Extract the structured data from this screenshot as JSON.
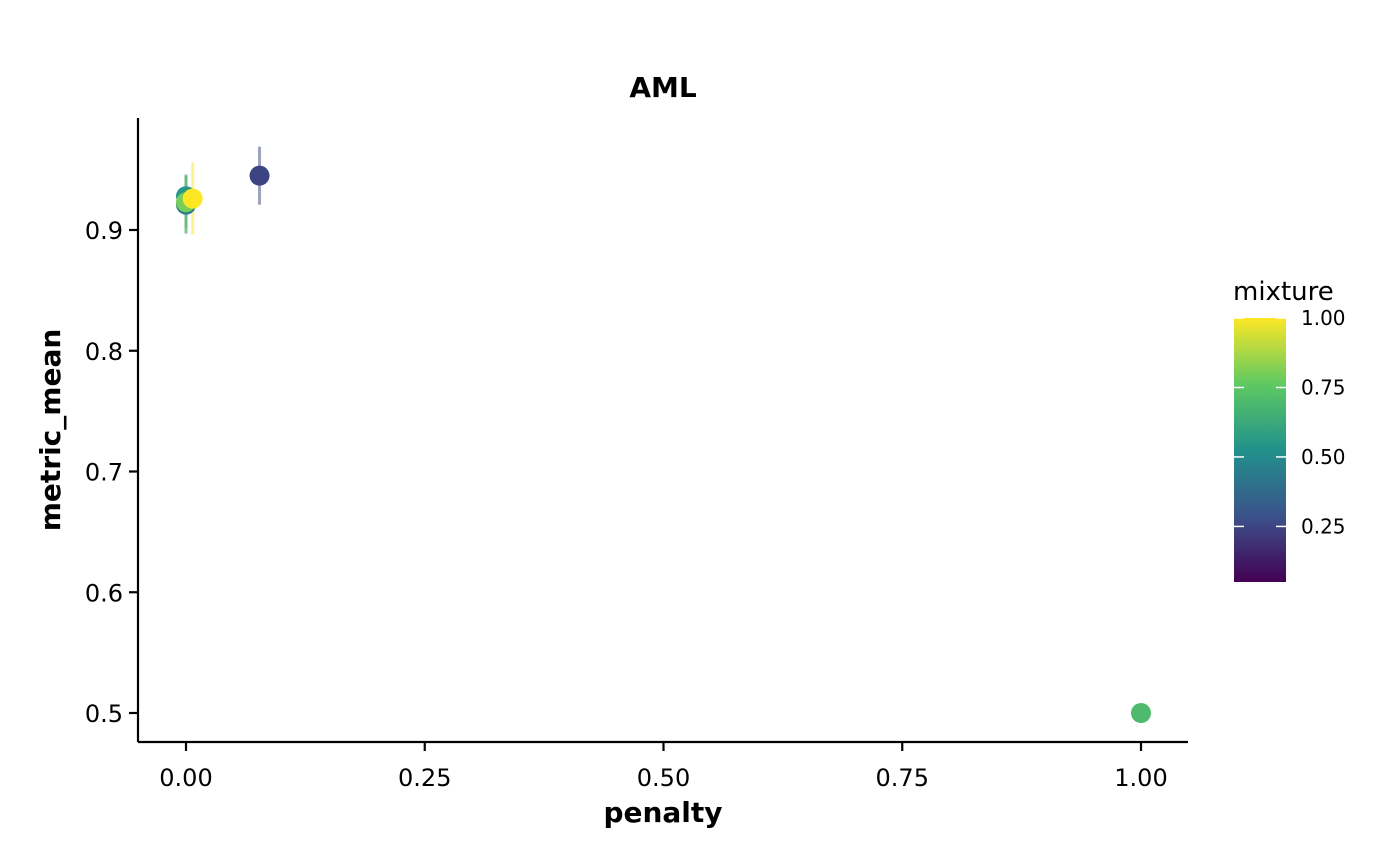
{
  "chart_data": {
    "type": "scatter",
    "title": "AML",
    "xlabel": "penalty",
    "ylabel": "metric_mean",
    "xlim": [
      -0.05,
      1.05
    ],
    "ylim": [
      0.477,
      0.992
    ],
    "x_ticks": [
      {
        "value": 0.0,
        "label": "0.00"
      },
      {
        "value": 0.25,
        "label": "0.25"
      },
      {
        "value": 0.5,
        "label": "0.50"
      },
      {
        "value": 0.75,
        "label": "0.75"
      },
      {
        "value": 1.0,
        "label": "1.00"
      }
    ],
    "y_ticks": [
      {
        "value": 0.5,
        "label": "0.5"
      },
      {
        "value": 0.6,
        "label": "0.6"
      },
      {
        "value": 0.7,
        "label": "0.7"
      },
      {
        "value": 0.8,
        "label": "0.8"
      },
      {
        "value": 0.9,
        "label": "0.9"
      }
    ],
    "grid": false,
    "color_scale": {
      "title": "mixture",
      "palette": [
        "#440154",
        "#3b528b",
        "#21918c",
        "#5ec962",
        "#fde725"
      ],
      "range": [
        0.05,
        1.0
      ],
      "ticks": [
        {
          "value": 0.25,
          "label": "0.25"
        },
        {
          "value": 0.5,
          "label": "0.50"
        },
        {
          "value": 0.75,
          "label": "0.75"
        },
        {
          "value": 1.0,
          "label": "1.00"
        }
      ],
      "legend_position": "right"
    },
    "points": [
      {
        "x": 0.0,
        "y": 0.921,
        "mixture": 0.45,
        "err_low": 0.897,
        "err_high": 0.945
      },
      {
        "x": 0.0,
        "y": 0.928,
        "mixture": 0.55,
        "err_low": 0.902,
        "err_high": 0.946
      },
      {
        "x": 0.0,
        "y": 0.923,
        "mixture": 0.8,
        "err_low": 0.898,
        "err_high": 0.944
      },
      {
        "x": 0.007,
        "y": 0.926,
        "mixture": 1.0,
        "err_low": 0.896,
        "err_high": 0.956
      },
      {
        "x": 0.077,
        "y": 0.945,
        "mixture": 0.25,
        "err_low": 0.921,
        "err_high": 0.969
      },
      {
        "x": 1.0,
        "y": 0.5,
        "mixture": 0.7,
        "err_low": 0.5,
        "err_high": 0.5
      }
    ]
  }
}
